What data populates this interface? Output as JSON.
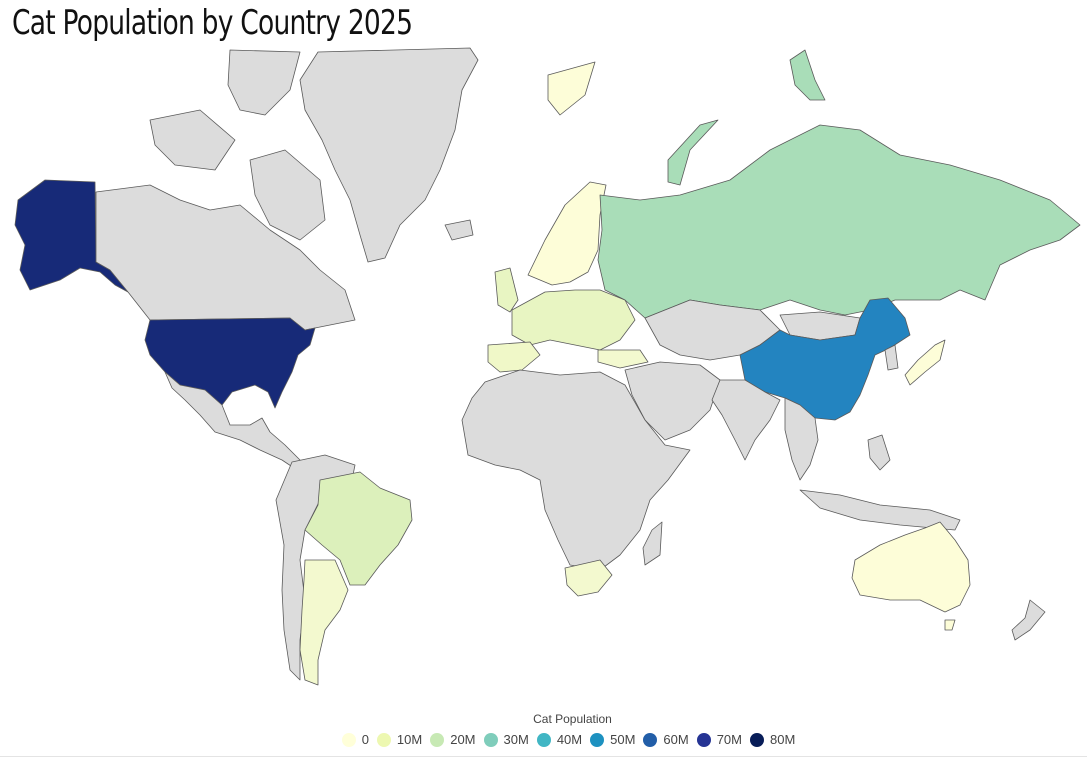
{
  "title": "Cat Population by Country 2025",
  "legend": {
    "title": "Cat Population",
    "items": [
      {
        "label": "0",
        "color": "#ffffd9"
      },
      {
        "label": "10M",
        "color": "#edf8b1"
      },
      {
        "label": "20M",
        "color": "#c7e9b4"
      },
      {
        "label": "30M",
        "color": "#7fcdbb"
      },
      {
        "label": "40M",
        "color": "#41b6c4"
      },
      {
        "label": "50M",
        "color": "#1d91c0"
      },
      {
        "label": "60M",
        "color": "#225ea8"
      },
      {
        "label": "70M",
        "color": "#253494"
      },
      {
        "label": "80M",
        "color": "#081d58"
      }
    ]
  },
  "colors": {
    "no_data": "#dcdcdc",
    "usa": "#172a78",
    "china": "#2384c0",
    "russia": "#a9ddb8",
    "brazil": "#dcf0bb",
    "europe_light": "#edf8c4",
    "pale": "#fdfdd8",
    "border": "#5a5a5a"
  }
}
